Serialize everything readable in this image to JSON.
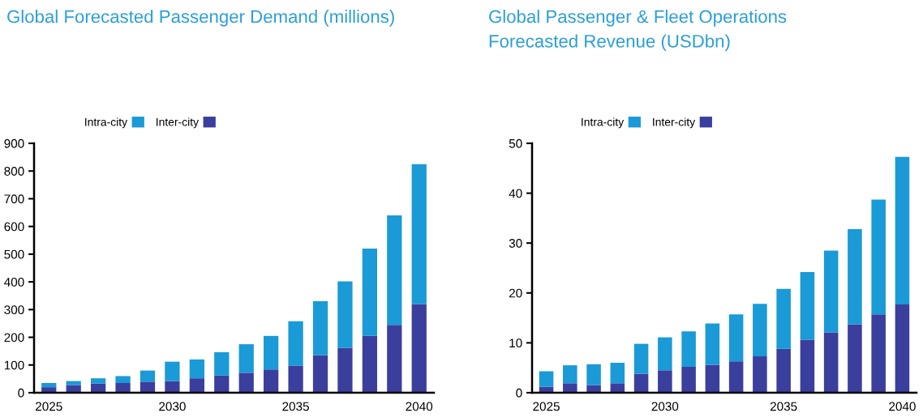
{
  "chart_data": [
    {
      "type": "bar",
      "title": "Global Forecasted Passenger Demand (millions)",
      "stacked": true,
      "legend": "top",
      "grid": false,
      "categories": [
        "2025",
        null,
        null,
        null,
        null,
        "2030",
        null,
        null,
        null,
        null,
        "2035",
        null,
        null,
        null,
        null,
        "2040"
      ],
      "ylim": [
        0,
        900
      ],
      "yticks": [
        0,
        100,
        200,
        300,
        400,
        500,
        600,
        700,
        800,
        900
      ],
      "series": [
        {
          "name": "Inter-city",
          "color": "#3a3f9e",
          "values": [
            20,
            28,
            33,
            35,
            40,
            42,
            52,
            62,
            72,
            84,
            98,
            135,
            162,
            205,
            245,
            320
          ]
        },
        {
          "name": "Intra-city",
          "color": "#1a9ad6",
          "values": [
            15,
            14,
            19,
            25,
            40,
            70,
            68,
            84,
            103,
            121,
            160,
            195,
            240,
            315,
            395,
            505
          ]
        }
      ]
    },
    {
      "type": "bar",
      "title": "Global Passenger & Fleet Operations\nForecasted Revenue (USDbn)",
      "stacked": true,
      "legend": "top",
      "grid": false,
      "categories": [
        "2025",
        null,
        null,
        null,
        null,
        "2030",
        null,
        null,
        null,
        null,
        "2035",
        null,
        null,
        null,
        null,
        "2040"
      ],
      "ylim": [
        0,
        50
      ],
      "yticks": [
        0,
        10,
        20,
        30,
        40,
        50
      ],
      "series": [
        {
          "name": "Inter-city",
          "color": "#3a3f9e",
          "values": [
            1.2,
            1.9,
            1.5,
            1.9,
            3.8,
            4.5,
            5.2,
            5.6,
            6.3,
            7.3,
            8.8,
            10.6,
            12.1,
            13.7,
            15.7,
            17.7
          ]
        },
        {
          "name": "Intra-city",
          "color": "#1a9ad6",
          "values": [
            3.1,
            3.6,
            4.2,
            4.1,
            6.0,
            6.6,
            7.1,
            8.3,
            9.4,
            10.5,
            12.0,
            13.6,
            16.4,
            19.1,
            23.0,
            29.6
          ]
        }
      ]
    }
  ]
}
